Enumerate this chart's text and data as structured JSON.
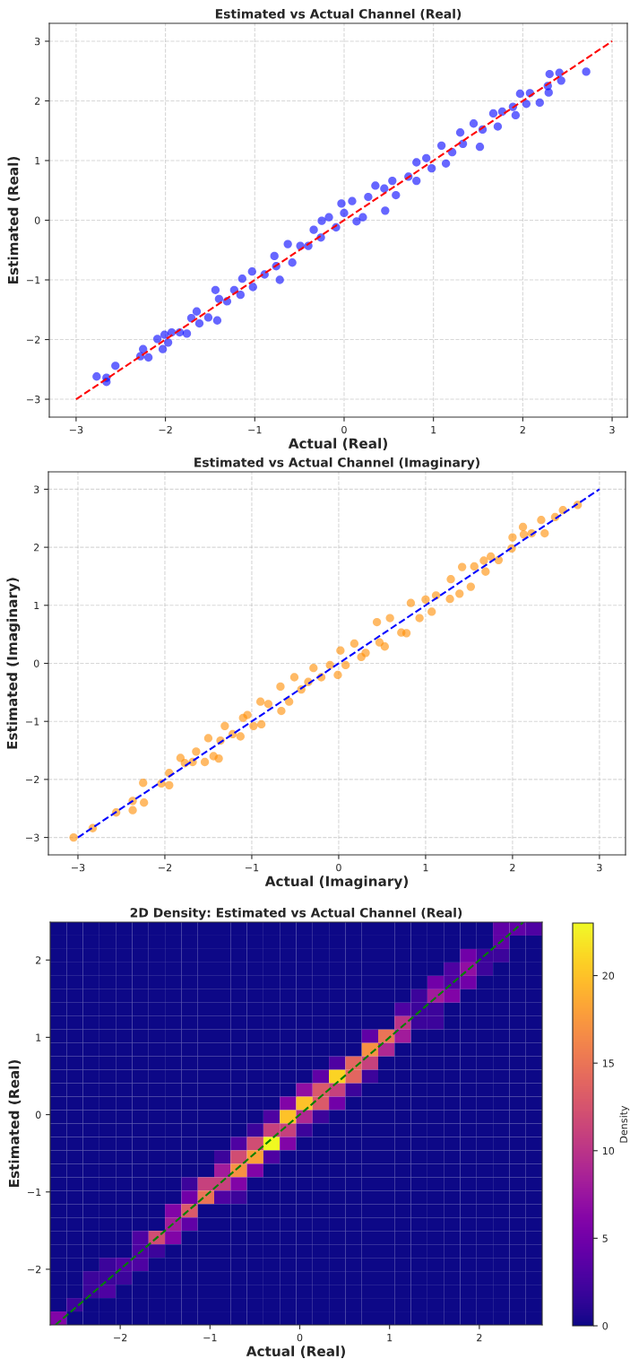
{
  "chart_data": [
    {
      "type": "scatter",
      "title": "Estimated vs Actual Channel (Real)",
      "xlabel": "Actual (Real)",
      "ylabel": "Estimated (Real)",
      "xlim": [
        -3.3,
        3.17
      ],
      "ylim": [
        -3.3,
        3.3
      ],
      "xticks": [
        {
          "value": -3,
          "label": "−3"
        },
        {
          "value": -2,
          "label": "−2"
        },
        {
          "value": -1,
          "label": "−1"
        },
        0,
        1,
        2,
        3
      ],
      "yticks": [
        {
          "value": -3,
          "label": "−3"
        },
        {
          "value": -2,
          "label": "−2"
        },
        {
          "value": -1,
          "label": "−1"
        },
        0,
        1,
        2,
        3
      ],
      "grid": true,
      "series": [
        {
          "type": "scatter",
          "color": "#0000ff",
          "marker": "circle",
          "x": [
            -2.77,
            -2.66,
            -2.66,
            -2.56,
            -2.28,
            -2.25,
            -2.19,
            -2.09,
            -2.03,
            -2.01,
            -1.97,
            -1.93,
            -1.84,
            -1.76,
            -1.71,
            -1.62,
            -1.65,
            -1.52,
            -1.44,
            -1.42,
            -1.4,
            -1.31,
            -1.23,
            -1.16,
            -1.14,
            -1.03,
            -1.02,
            -0.89,
            -0.72,
            -0.76,
            -0.78,
            -0.63,
            -0.58,
            -0.49,
            -0.34,
            -0.4,
            -0.26,
            -0.25,
            -0.17,
            -0.09,
            -0.03,
            0.0,
            0.09,
            0.14,
            0.21,
            0.27,
            0.35,
            0.46,
            0.45,
            0.54,
            0.58,
            0.72,
            0.81,
            0.81,
            0.92,
            0.98,
            1.09,
            1.14,
            1.21,
            1.3,
            1.33,
            1.45,
            1.52,
            1.55,
            1.67,
            1.72,
            1.77,
            1.89,
            1.92,
            1.97,
            2.04,
            2.08,
            2.19,
            2.28,
            2.29,
            2.3,
            2.41,
            2.43,
            2.71
          ],
          "values": [
            -2.62,
            -2.71,
            -2.64,
            -2.44,
            -2.28,
            -2.16,
            -2.3,
            -1.99,
            -2.16,
            -1.92,
            -2.05,
            -1.88,
            -1.88,
            -1.9,
            -1.64,
            -1.73,
            -1.53,
            -1.63,
            -1.17,
            -1.68,
            -1.32,
            -1.36,
            -1.17,
            -1.25,
            -0.98,
            -0.86,
            -1.12,
            -0.91,
            -1.0,
            -0.77,
            -0.6,
            -0.4,
            -0.71,
            -0.43,
            -0.16,
            -0.43,
            -0.29,
            -0.01,
            0.05,
            -0.12,
            0.28,
            0.12,
            0.32,
            -0.02,
            0.05,
            0.39,
            0.58,
            0.16,
            0.53,
            0.66,
            0.42,
            0.73,
            0.97,
            0.66,
            1.04,
            0.87,
            1.25,
            0.95,
            1.14,
            1.47,
            1.28,
            1.62,
            1.23,
            1.52,
            1.79,
            1.57,
            1.82,
            1.9,
            1.76,
            2.12,
            1.95,
            2.13,
            1.97,
            2.25,
            2.14,
            2.45,
            2.47,
            2.34,
            2.49
          ]
        },
        {
          "type": "line",
          "color": "#ff0000",
          "line_style": "dashed",
          "x": [
            -3,
            3
          ],
          "values": [
            -3,
            3
          ]
        }
      ]
    },
    {
      "type": "scatter",
      "title": "Estimated vs Actual Channel (Imaginary)",
      "xlabel": "Actual (Imaginary)",
      "ylabel": "Estimated (Imaginary)",
      "xlim": [
        -3.34,
        3.3
      ],
      "ylim": [
        -3.3,
        3.3
      ],
      "xticks": [
        {
          "value": -3,
          "label": "−3"
        },
        {
          "value": -2,
          "label": "−2"
        },
        {
          "value": -1,
          "label": "−1"
        },
        0,
        1,
        2,
        3
      ],
      "yticks": [
        {
          "value": -3,
          "label": "−3"
        },
        {
          "value": -2,
          "label": "−2"
        },
        {
          "value": -1,
          "label": "−1"
        },
        0,
        1,
        2,
        3
      ],
      "grid": true,
      "series": [
        {
          "type": "scatter",
          "color": "#ff8c00",
          "marker": "circle",
          "x": [
            -3.05,
            -2.83,
            -2.56,
            -2.37,
            -2.37,
            -2.24,
            -2.25,
            -2.04,
            -1.95,
            -1.95,
            -1.82,
            -1.77,
            -1.68,
            -1.64,
            -1.54,
            -1.5,
            -1.44,
            -1.38,
            -1.36,
            -1.31,
            -1.22,
            -1.13,
            -1.1,
            -1.05,
            -0.98,
            -0.89,
            -0.9,
            -0.81,
            -0.66,
            -0.67,
            -0.57,
            -0.51,
            -0.43,
            -0.35,
            -0.29,
            -0.2,
            -0.1,
            -0.01,
            0.02,
            0.08,
            0.18,
            0.26,
            0.31,
            0.44,
            0.47,
            0.53,
            0.59,
            0.72,
            0.78,
            0.83,
            0.93,
            1.0,
            1.07,
            1.12,
            1.28,
            1.29,
            1.39,
            1.42,
            1.52,
            1.56,
            1.67,
            1.69,
            1.75,
            1.84,
            1.99,
            2.0,
            2.12,
            2.13,
            2.22,
            2.33,
            2.37,
            2.49,
            2.58,
            2.75
          ],
          "values": [
            -3.0,
            -2.84,
            -2.57,
            -2.53,
            -2.37,
            -2.4,
            -2.06,
            -2.07,
            -2.1,
            -1.89,
            -1.63,
            -1.72,
            -1.7,
            -1.52,
            -1.7,
            -1.29,
            -1.6,
            -1.64,
            -1.33,
            -1.08,
            -1.22,
            -1.26,
            -0.94,
            -0.89,
            -1.08,
            -1.05,
            -0.66,
            -0.7,
            -0.82,
            -0.4,
            -0.66,
            -0.24,
            -0.45,
            -0.32,
            -0.08,
            -0.24,
            -0.03,
            -0.2,
            0.22,
            -0.03,
            0.34,
            0.11,
            0.18,
            0.71,
            0.36,
            0.29,
            0.78,
            0.53,
            0.52,
            1.04,
            0.78,
            1.1,
            0.89,
            1.17,
            1.11,
            1.45,
            1.2,
            1.66,
            1.32,
            1.67,
            1.77,
            1.58,
            1.84,
            1.78,
            1.98,
            2.17,
            2.35,
            2.22,
            2.24,
            2.47,
            2.24,
            2.52,
            2.64,
            2.73
          ]
        },
        {
          "type": "line",
          "color": "#0000ff",
          "line_style": "dashed",
          "x": [
            -3,
            3
          ],
          "values": [
            -3,
            3
          ]
        }
      ]
    },
    {
      "type": "heatmap",
      "title": "2D Density: Estimated vs Actual Channel (Real)",
      "xlabel": "Actual (Real)",
      "ylabel": "Estimated (Real)",
      "clabel": "Density",
      "xlim": [
        -2.78,
        2.7
      ],
      "ylim": [
        -2.72,
        2.49
      ],
      "xticks": [
        {
          "value": -2,
          "label": "−2"
        },
        {
          "value": -1,
          "label": "−1"
        },
        0,
        1,
        2
      ],
      "yticks": [
        {
          "value": -2,
          "label": "−2"
        },
        {
          "value": -1,
          "label": "−1"
        },
        0,
        1,
        2
      ],
      "clim": [
        0,
        23
      ],
      "cticks": [
        0,
        5,
        10,
        15,
        20
      ],
      "cells": [
        [
          0,
          0,
          0,
          0,
          0,
          0,
          0,
          0,
          0,
          0,
          0,
          0,
          0,
          0,
          0,
          0,
          0,
          0,
          0,
          0,
          0,
          0,
          0,
          0,
          0,
          0,
          0,
          4,
          4,
          3
        ],
        [
          0,
          0,
          0,
          0,
          0,
          0,
          0,
          0,
          0,
          0,
          0,
          0,
          0,
          0,
          0,
          0,
          0,
          0,
          0,
          0,
          0,
          0,
          0,
          0,
          0,
          0,
          0,
          4,
          0,
          0
        ],
        [
          0,
          0,
          0,
          0,
          0,
          0,
          0,
          0,
          0,
          0,
          0,
          0,
          0,
          0,
          0,
          0,
          0,
          0,
          0,
          0,
          0,
          0,
          0,
          0,
          0,
          5,
          2,
          2,
          0,
          0
        ],
        [
          0,
          0,
          0,
          0,
          0,
          0,
          0,
          0,
          0,
          0,
          0,
          0,
          0,
          0,
          0,
          0,
          0,
          0,
          0,
          0,
          0,
          0,
          0,
          0,
          3,
          7,
          2,
          0,
          0,
          0
        ],
        [
          0,
          0,
          0,
          0,
          0,
          0,
          0,
          0,
          0,
          0,
          0,
          0,
          0,
          0,
          0,
          0,
          0,
          0,
          0,
          0,
          0,
          0,
          0,
          5,
          3,
          5,
          0,
          0,
          0,
          0
        ],
        [
          0,
          0,
          0,
          0,
          0,
          0,
          0,
          0,
          0,
          0,
          0,
          0,
          0,
          0,
          0,
          0,
          0,
          0,
          0,
          0,
          0,
          0,
          2,
          8,
          6,
          0,
          0,
          0,
          0,
          0
        ],
        [
          0,
          0,
          0,
          0,
          0,
          0,
          0,
          0,
          0,
          0,
          0,
          0,
          0,
          0,
          0,
          0,
          0,
          0,
          0,
          0,
          0,
          3,
          2,
          2,
          0,
          0,
          0,
          0,
          0,
          0
        ],
        [
          0,
          0,
          0,
          0,
          0,
          0,
          0,
          0,
          0,
          0,
          0,
          0,
          0,
          0,
          0,
          0,
          0,
          0,
          0,
          0,
          0,
          10,
          2,
          2,
          0,
          0,
          0,
          0,
          0,
          0
        ],
        [
          0,
          0,
          0,
          0,
          0,
          0,
          0,
          0,
          0,
          0,
          0,
          0,
          0,
          0,
          0,
          0,
          0,
          0,
          0,
          4,
          15,
          8,
          0,
          0,
          0,
          0,
          0,
          0,
          0,
          0
        ],
        [
          0,
          0,
          0,
          0,
          0,
          0,
          0,
          0,
          0,
          0,
          0,
          0,
          0,
          0,
          0,
          0,
          0,
          0,
          0,
          17,
          9,
          0,
          0,
          0,
          0,
          0,
          0,
          0,
          0,
          0
        ],
        [
          0,
          0,
          0,
          0,
          0,
          0,
          0,
          0,
          0,
          0,
          0,
          0,
          0,
          0,
          0,
          0,
          0,
          3,
          14,
          11,
          0,
          0,
          0,
          0,
          0,
          0,
          0,
          0,
          0,
          0
        ],
        [
          0,
          0,
          0,
          0,
          0,
          0,
          0,
          0,
          0,
          0,
          0,
          0,
          0,
          0,
          0,
          0,
          4,
          21,
          14,
          2,
          0,
          0,
          0,
          0,
          0,
          0,
          0,
          0,
          0,
          0
        ],
        [
          0,
          0,
          0,
          0,
          0,
          0,
          0,
          0,
          0,
          0,
          0,
          0,
          0,
          0,
          0,
          7,
          13,
          11,
          2,
          0,
          0,
          0,
          0,
          0,
          0,
          0,
          0,
          0,
          0,
          0
        ],
        [
          0,
          0,
          0,
          0,
          0,
          0,
          0,
          0,
          0,
          0,
          0,
          0,
          0,
          0,
          6,
          20,
          13,
          5,
          0,
          0,
          0,
          0,
          0,
          0,
          0,
          0,
          0,
          0,
          0,
          0
        ],
        [
          0,
          0,
          0,
          0,
          0,
          0,
          0,
          0,
          0,
          0,
          0,
          0,
          0,
          3,
          20,
          9,
          2,
          0,
          0,
          0,
          0,
          0,
          0,
          0,
          0,
          0,
          0,
          0,
          0,
          0
        ],
        [
          0,
          0,
          0,
          0,
          0,
          0,
          0,
          0,
          0,
          0,
          0,
          0,
          2,
          11,
          11,
          2,
          0,
          0,
          0,
          0,
          0,
          0,
          0,
          0,
          0,
          0,
          0,
          0,
          0,
          0
        ],
        [
          0,
          0,
          0,
          0,
          0,
          0,
          0,
          0,
          0,
          0,
          0,
          3,
          12,
          23,
          6,
          0,
          0,
          0,
          0,
          0,
          0,
          0,
          0,
          0,
          0,
          0,
          0,
          0,
          0,
          0
        ],
        [
          0,
          0,
          0,
          0,
          0,
          0,
          0,
          0,
          0,
          0,
          2,
          12,
          18,
          3,
          0,
          0,
          0,
          0,
          0,
          0,
          0,
          0,
          0,
          0,
          0,
          0,
          0,
          0,
          0,
          0
        ],
        [
          0,
          0,
          0,
          0,
          0,
          0,
          0,
          0,
          0,
          0,
          8,
          17,
          6,
          0,
          0,
          0,
          0,
          0,
          0,
          0,
          0,
          0,
          0,
          0,
          0,
          0,
          0,
          0,
          0,
          0
        ],
        [
          0,
          0,
          0,
          0,
          0,
          0,
          0,
          0,
          2,
          11,
          11,
          6,
          0,
          0,
          0,
          0,
          0,
          0,
          0,
          0,
          0,
          0,
          0,
          0,
          0,
          0,
          0,
          0,
          0,
          0
        ],
        [
          0,
          0,
          0,
          0,
          0,
          0,
          0,
          0,
          5,
          15,
          3,
          2,
          0,
          0,
          0,
          0,
          0,
          0,
          0,
          0,
          0,
          0,
          0,
          0,
          0,
          0,
          0,
          0,
          0,
          0
        ],
        [
          0,
          0,
          0,
          0,
          0,
          0,
          0,
          6,
          13,
          0,
          0,
          0,
          0,
          0,
          0,
          0,
          0,
          0,
          0,
          0,
          0,
          0,
          0,
          0,
          0,
          0,
          0,
          0,
          0,
          0
        ],
        [
          0,
          0,
          0,
          0,
          0,
          0,
          0,
          8,
          4,
          0,
          0,
          0,
          0,
          0,
          0,
          0,
          0,
          0,
          0,
          0,
          0,
          0,
          0,
          0,
          0,
          0,
          0,
          0,
          0,
          0
        ],
        [
          0,
          0,
          0,
          0,
          0,
          3,
          12,
          6,
          0,
          0,
          0,
          0,
          0,
          0,
          0,
          0,
          0,
          0,
          0,
          0,
          0,
          0,
          0,
          0,
          0,
          0,
          0,
          0,
          0,
          0
        ],
        [
          0,
          0,
          0,
          0,
          0,
          3,
          2,
          0,
          0,
          0,
          0,
          0,
          0,
          0,
          0,
          0,
          0,
          0,
          0,
          0,
          0,
          0,
          0,
          0,
          0,
          0,
          0,
          0,
          0,
          0
        ],
        [
          0,
          0,
          0,
          2,
          3,
          3,
          0,
          0,
          0,
          0,
          0,
          0,
          0,
          0,
          0,
          0,
          0,
          0,
          0,
          0,
          0,
          0,
          0,
          0,
          0,
          0,
          0,
          0,
          0,
          0
        ],
        [
          0,
          0,
          2,
          2,
          2,
          0,
          0,
          0,
          0,
          0,
          0,
          0,
          0,
          0,
          0,
          0,
          0,
          0,
          0,
          0,
          0,
          0,
          0,
          0,
          0,
          0,
          0,
          0,
          0,
          0
        ],
        [
          0,
          0,
          2,
          3,
          0,
          0,
          0,
          0,
          0,
          0,
          0,
          0,
          0,
          0,
          0,
          0,
          0,
          0,
          0,
          0,
          0,
          0,
          0,
          0,
          0,
          0,
          0,
          0,
          0,
          0
        ],
        [
          0,
          2,
          0,
          0,
          0,
          0,
          0,
          0,
          0,
          0,
          0,
          0,
          0,
          0,
          0,
          0,
          0,
          0,
          0,
          0,
          0,
          0,
          0,
          0,
          0,
          0,
          0,
          0,
          0,
          0
        ],
        [
          6,
          0,
          0,
          0,
          0,
          0,
          0,
          0,
          0,
          0,
          0,
          0,
          0,
          0,
          0,
          0,
          0,
          0,
          0,
          0,
          0,
          0,
          0,
          0,
          0,
          0,
          0,
          0,
          0,
          0
        ]
      ],
      "series": [
        {
          "type": "line",
          "color": "#008000",
          "line_style": "dashed",
          "x": [
            -2.72,
            2.49
          ],
          "values": [
            -2.72,
            2.49
          ]
        }
      ]
    }
  ]
}
